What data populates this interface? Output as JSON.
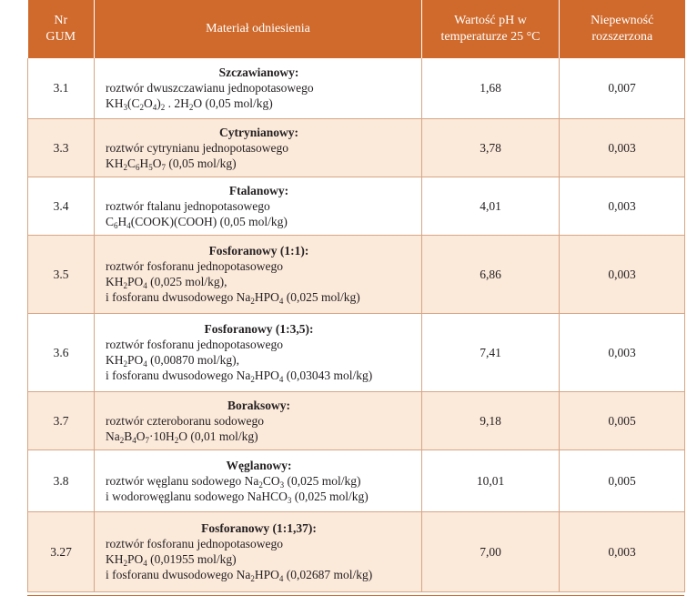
{
  "header": {
    "nr": "Nr GUM",
    "material": "Materiał odniesienia",
    "ph": "Wartość pH w temperaturze 25 °C",
    "unc": "Niepewność rozszerzona"
  },
  "rows": [
    {
      "nr": "3.1",
      "title": "Szczawianowy:",
      "lines": [
        [
          {
            "t": "roztwór dwuszczawianu jednopotasowego"
          }
        ],
        [
          {
            "t": "KH"
          },
          {
            "t": "3",
            "s": true
          },
          {
            "t": "(C"
          },
          {
            "t": "2",
            "s": true
          },
          {
            "t": "O"
          },
          {
            "t": "4",
            "s": true
          },
          {
            "t": ")"
          },
          {
            "t": "2",
            "s": true
          },
          {
            "t": " . 2H"
          },
          {
            "t": "2",
            "s": true
          },
          {
            "t": "O (0,05 mol/kg)"
          }
        ]
      ],
      "ph": "1,68",
      "unc": "0,007"
    },
    {
      "nr": "3.3",
      "title": "Cytrynianowy:",
      "lines": [
        [
          {
            "t": "roztwór cytrynianu jednopotasowego"
          }
        ],
        [
          {
            "t": "KH"
          },
          {
            "t": "2",
            "s": true
          },
          {
            "t": "C"
          },
          {
            "t": "6",
            "s": true
          },
          {
            "t": "H"
          },
          {
            "t": "5",
            "s": true
          },
          {
            "t": "O"
          },
          {
            "t": "7",
            "s": true
          },
          {
            "t": " (0,05 mol/kg)"
          }
        ]
      ],
      "ph": "3,78",
      "unc": "0,003"
    },
    {
      "nr": "3.4",
      "title": "Ftalanowy:",
      "lines": [
        [
          {
            "t": "roztwór ftalanu jednopotasowego"
          }
        ],
        [
          {
            "t": "C"
          },
          {
            "t": "6",
            "s": true
          },
          {
            "t": "H"
          },
          {
            "t": "4",
            "s": true
          },
          {
            "t": "(COOK)(COOH) (0,05 mol/kg)"
          }
        ]
      ],
      "ph": "4,01",
      "unc": "0,003"
    },
    {
      "nr": "3.5",
      "title": "Fosforanowy (1:1):",
      "lines": [
        [
          {
            "t": "roztwór fosforanu jednopotasowego"
          }
        ],
        [
          {
            "t": "KH"
          },
          {
            "t": "2",
            "s": true
          },
          {
            "t": "PO"
          },
          {
            "t": "4",
            "s": true
          },
          {
            "t": " (0,025 mol/kg),"
          }
        ],
        [
          {
            "t": "i fosforanu dwusodowego Na"
          },
          {
            "t": "2",
            "s": true
          },
          {
            "t": "HPO"
          },
          {
            "t": "4",
            "s": true
          },
          {
            "t": " (0,025 mol/kg)"
          }
        ]
      ],
      "ph": "6,86",
      "unc": "0,003"
    },
    {
      "nr": "3.6",
      "title": "Fosforanowy (1:3,5):",
      "lines": [
        [
          {
            "t": "roztwór fosforanu jednopotasowego"
          }
        ],
        [
          {
            "t": "KH"
          },
          {
            "t": "2",
            "s": true
          },
          {
            "t": "PO"
          },
          {
            "t": "4",
            "s": true
          },
          {
            "t": " (0,00870 mol/kg),"
          }
        ],
        [
          {
            "t": "i fosforanu dwusodowego Na"
          },
          {
            "t": "2",
            "s": true
          },
          {
            "t": "HPO"
          },
          {
            "t": "4",
            "s": true
          },
          {
            "t": " (0,03043 mol/kg)"
          }
        ]
      ],
      "ph": "7,41",
      "unc": "0,003"
    },
    {
      "nr": "3.7",
      "title": "Boraksowy:",
      "lines": [
        [
          {
            "t": "roztwór czteroboranu sodowego"
          }
        ],
        [
          {
            "t": "Na"
          },
          {
            "t": "2",
            "s": true
          },
          {
            "t": "B"
          },
          {
            "t": "4",
            "s": true
          },
          {
            "t": "O"
          },
          {
            "t": "7",
            "s": true
          },
          {
            "t": "·10H"
          },
          {
            "t": "2",
            "s": true
          },
          {
            "t": "O (0,01 mol/kg)"
          }
        ]
      ],
      "ph": "9,18",
      "unc": "0,005"
    },
    {
      "nr": "3.8",
      "title": "Węglanowy:",
      "lines": [
        [
          {
            "t": "roztwór węglanu sodowego Na"
          },
          {
            "t": "2",
            "s": true
          },
          {
            "t": "CO"
          },
          {
            "t": "3",
            "s": true
          },
          {
            "t": " (0,025 mol/kg)"
          }
        ],
        [
          {
            "t": "i wodorowęglanu sodowego NaHCO"
          },
          {
            "t": "3",
            "s": true
          },
          {
            "t": " (0,025 mol/kg)"
          }
        ]
      ],
      "ph": "10,01",
      "unc": "0,005"
    },
    {
      "nr": "3.27",
      "title": "Fosforanowy (1:1,37):",
      "lines": [
        [
          {
            "t": "roztwór fosforanu jednopotasowego"
          }
        ],
        [
          {
            "t": "KH"
          },
          {
            "t": "2",
            "s": true
          },
          {
            "t": "PO"
          },
          {
            "t": "4",
            "s": true
          },
          {
            "t": " (0,01955 mol/kg)"
          }
        ],
        [
          {
            "t": "i fosforanu dwusodowego Na"
          },
          {
            "t": "2",
            "s": true
          },
          {
            "t": "HPO"
          },
          {
            "t": "4",
            "s": true
          },
          {
            "t": " (0,02687 mol/kg)"
          }
        ]
      ],
      "ph": "7,00",
      "unc": "0,003"
    }
  ]
}
